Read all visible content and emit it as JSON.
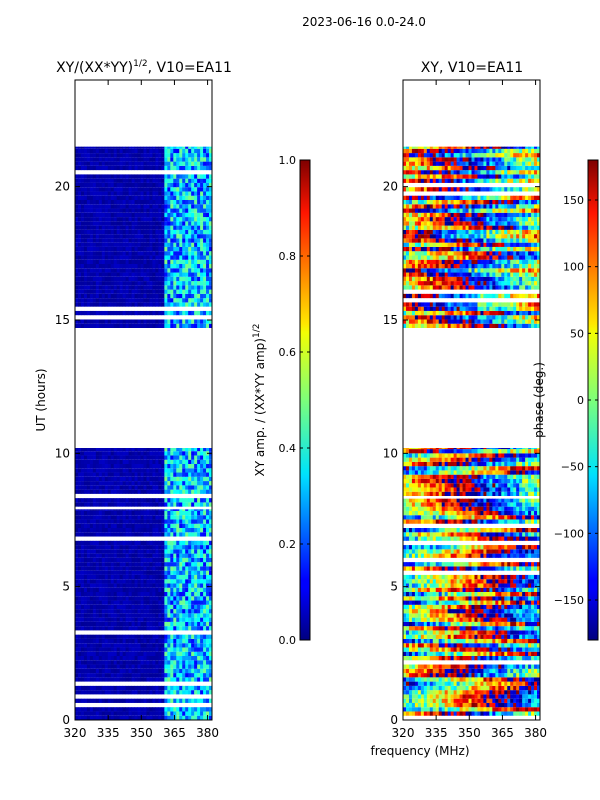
{
  "chart_data": {
    "suptitle": "2023-06-16 0.0-24.0",
    "shared_xlabel": "frequency (MHz)",
    "panels": [
      {
        "id": "amp",
        "type": "heatmap",
        "title_main": "XY/(XX*YY)",
        "title_sup": "1/2",
        "title_tail": ", V10=EA11",
        "xlabel": "frequency (MHz)",
        "ylabel": "UT (hours)",
        "xlim": [
          320,
          382
        ],
        "ylim": [
          0,
          24
        ],
        "xticks": [
          320,
          335,
          350,
          365,
          380
        ],
        "yticks": [
          0,
          5,
          10,
          15,
          20
        ],
        "data_rows_hours": [
          [
            0.0,
            7.9
          ],
          [
            8.0,
            10.2
          ],
          [
            14.7,
            21.5
          ]
        ],
        "colorbar": {
          "label_main": "XY amp. / (XX*YY amp)",
          "label_sup": "1/2",
          "range": [
            0.0,
            1.0
          ],
          "ticks": [
            "0.0",
            "0.2",
            "0.4",
            "0.6",
            "0.8",
            "1.0"
          ],
          "tick_values": [
            0.0,
            0.2,
            0.4,
            0.6,
            0.8,
            1.0
          ]
        },
        "colormap": "jet"
      },
      {
        "id": "phase",
        "type": "heatmap",
        "title_main": "XY, V10=EA11",
        "xlabel": "frequency (MHz)",
        "ylabel": "",
        "xlim": [
          320,
          382
        ],
        "ylim": [
          0,
          24
        ],
        "xticks": [
          320,
          335,
          350,
          365,
          380
        ],
        "yticks": [
          0,
          5,
          10,
          15,
          20
        ],
        "data_rows_hours": [
          [
            0.0,
            8.3
          ],
          [
            8.4,
            10.2
          ],
          [
            14.7,
            21.5
          ]
        ],
        "colorbar": {
          "label_main": "phase (deg.)",
          "range": [
            -180,
            180
          ],
          "ticks": [
            "−150",
            "−100",
            "−50",
            "0",
            "50",
            "100",
            "150"
          ],
          "tick_values": [
            -150,
            -100,
            -50,
            0,
            50,
            100,
            150
          ]
        },
        "colormap": "jet"
      }
    ]
  }
}
